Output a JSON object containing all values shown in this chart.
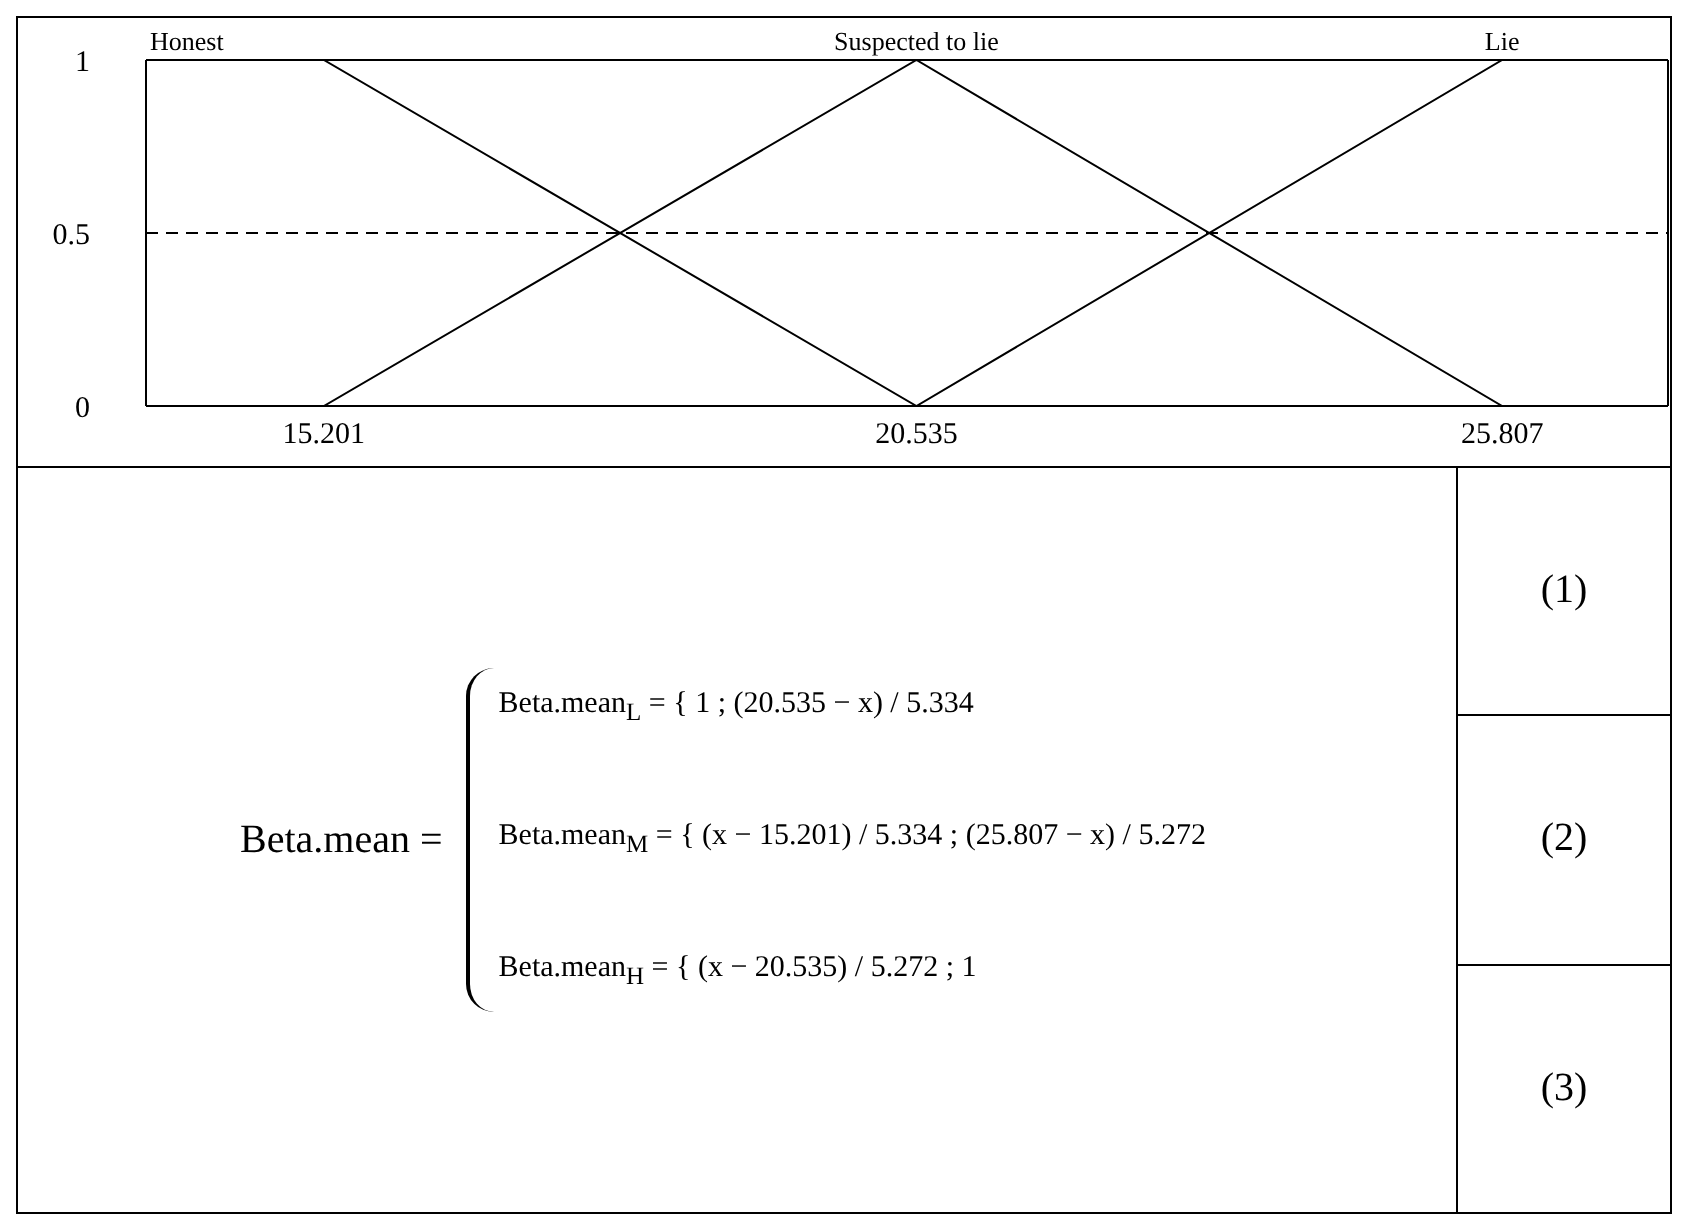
{
  "chart_data": {
    "type": "line",
    "series": [
      {
        "name": "Honest",
        "color": "#000000",
        "x": [
          13.6,
          15.201,
          20.535
        ],
        "values": [
          1,
          1,
          0
        ]
      },
      {
        "name": "Suspected to lie",
        "color": "#000000",
        "x": [
          15.201,
          20.535,
          25.807
        ],
        "values": [
          0,
          1,
          0
        ]
      },
      {
        "name": "Lie",
        "color": "#000000",
        "x": [
          20.535,
          25.807,
          27.3
        ],
        "values": [
          0,
          1,
          1
        ]
      }
    ],
    "xlim": [
      13.6,
      27.3
    ],
    "xticks": [
      15.201,
      20.535,
      25.807
    ],
    "ylim": [
      0,
      1
    ],
    "yticks": [
      0,
      0.5,
      1
    ],
    "marker": "none",
    "line_style": "solid",
    "ref_lines": [
      {
        "axis": "y",
        "value": 0.5,
        "label": null,
        "color": "#000000",
        "line_style": "dashed"
      }
    ],
    "annotations": [
      "Beta.mean =",
      "Beta.mean$_{L}$ = { 1 ; (20.535 − x) / 5.334",
      "Beta.mean$_{M}$ = { (x − 15.201) / 5.334 ; (25.807 − x) / 5.272",
      "Beta.mean$_{H}$ = { (x − 20.535) / 5.272 ; 1",
      "(1)",
      "(2)",
      "(3)"
    ]
  }
}
